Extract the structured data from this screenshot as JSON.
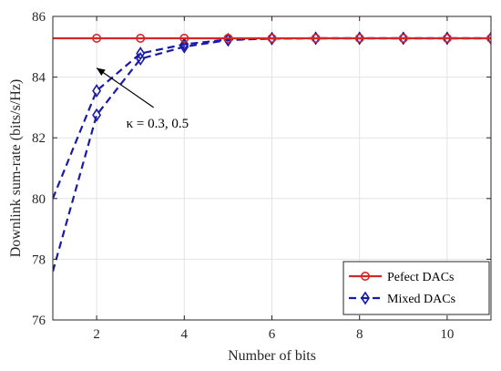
{
  "chart_data": {
    "type": "line",
    "xlabel": "Number of bits",
    "ylabel": "Downlink sum-rate (bits/s/Hz)",
    "xlim": [
      1,
      11
    ],
    "ylim": [
      76,
      86
    ],
    "xticks": [
      2,
      4,
      6,
      8,
      10
    ],
    "yticks": [
      76,
      78,
      80,
      82,
      84,
      86
    ],
    "grid": true,
    "legend_position": "bottom-right",
    "legend": [
      {
        "label": "Pefect DACs",
        "color": "#d62728",
        "marker": "circle",
        "dash": "solid"
      },
      {
        "label": "Mixed DACs",
        "color": "#1a1aa8",
        "marker": "diamond",
        "dash": "dashed"
      }
    ],
    "series": [
      {
        "color": "#d62728",
        "dash": "solid",
        "marker": "circle",
        "x": [
          1,
          2,
          3,
          4,
          5,
          6,
          7,
          8,
          9,
          10,
          11
        ],
        "y": [
          85.28,
          85.28,
          85.28,
          85.28,
          85.28,
          85.28,
          85.28,
          85.28,
          85.28,
          85.28,
          85.28
        ],
        "marker_x": [
          2,
          3,
          4,
          5,
          6,
          7,
          8,
          9,
          10,
          11
        ]
      },
      {
        "color": "#1a1aa8",
        "dash": "dashed",
        "marker": "diamond",
        "x": [
          1,
          2,
          3,
          4,
          5,
          6,
          7,
          8,
          9,
          10,
          11
        ],
        "y": [
          80.0,
          83.55,
          84.78,
          85.08,
          85.24,
          85.27,
          85.28,
          85.28,
          85.28,
          85.28,
          85.28
        ],
        "marker_x": [
          2,
          3,
          4,
          5,
          6,
          7,
          8,
          9,
          10,
          11
        ]
      },
      {
        "color": "#1a1aa8",
        "dash": "dashed",
        "marker": "diamond",
        "x": [
          1,
          2,
          3,
          4,
          5,
          6,
          7,
          8,
          9,
          10,
          11
        ],
        "y": [
          77.6,
          82.75,
          84.6,
          85.0,
          85.22,
          85.27,
          85.28,
          85.28,
          85.28,
          85.28,
          85.28
        ],
        "marker_x": [
          2,
          3,
          4,
          5,
          6,
          7,
          8,
          9,
          10,
          11
        ]
      }
    ],
    "annotations": [
      {
        "text": "κ = 0.3, 0.5",
        "arrow_from": [
          3.3,
          83.0
        ],
        "arrow_to": [
          2.0,
          84.3
        ]
      }
    ]
  }
}
